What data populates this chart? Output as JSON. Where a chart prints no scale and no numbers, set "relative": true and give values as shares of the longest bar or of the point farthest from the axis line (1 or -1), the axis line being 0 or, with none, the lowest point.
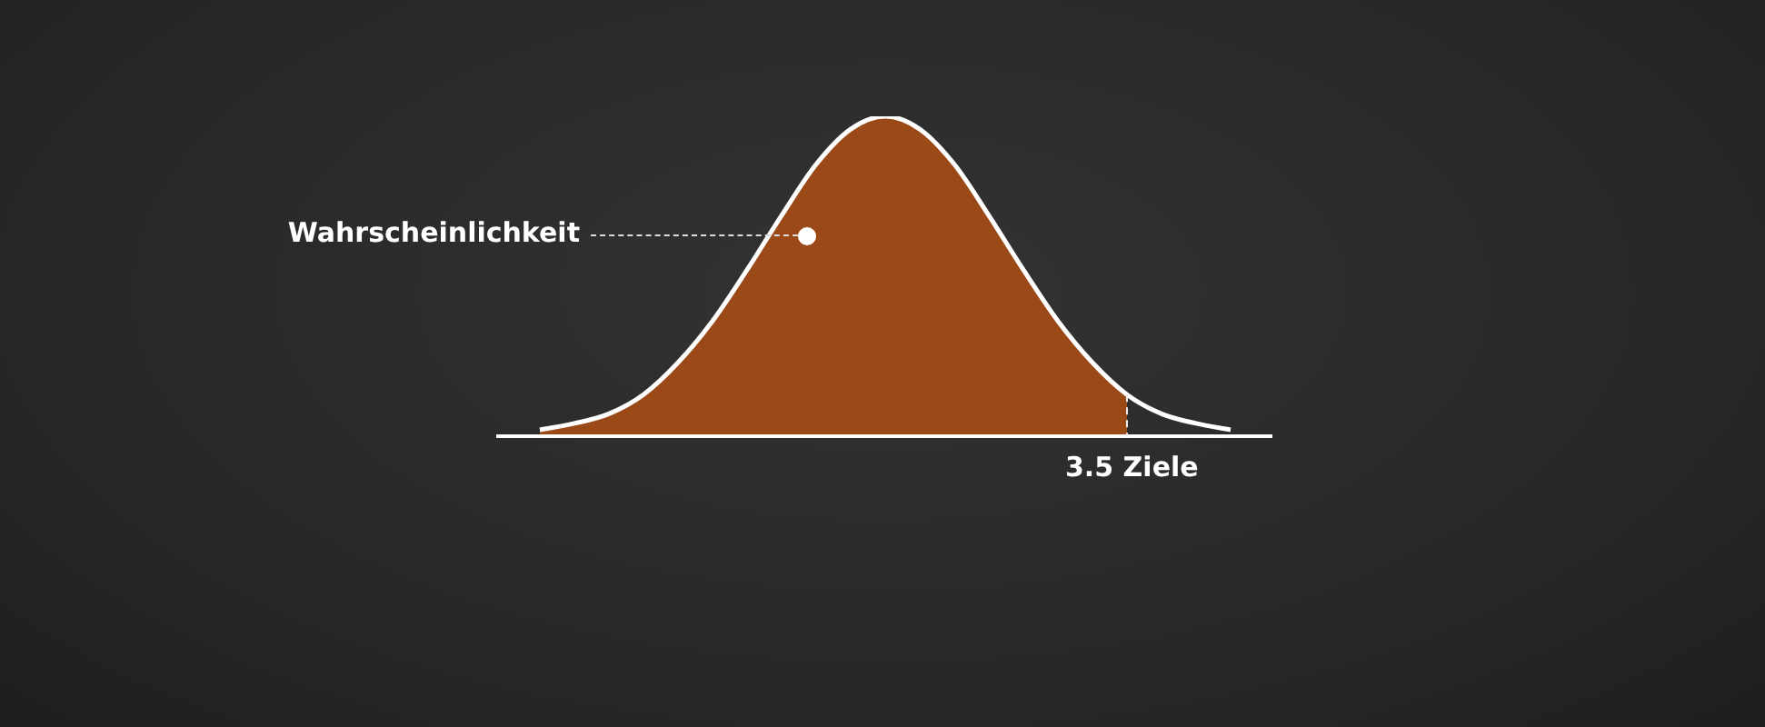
{
  "chart_data": {
    "type": "area",
    "relative": true,
    "categories": [
      null,
      null,
      null,
      null,
      null,
      null,
      null,
      null,
      null,
      null,
      null,
      null,
      null,
      null,
      null,
      null,
      null,
      null,
      null,
      null,
      null
    ],
    "series": [
      {
        "color": "#9b4a17",
        "values": [
          0.02,
          0.04,
          0.07,
          0.13,
          0.23,
          0.36,
          0.52,
          0.69,
          0.85,
          0.96,
          1,
          0.96,
          0.85,
          0.69,
          0.52,
          0.36,
          0.23,
          0.13,
          null,
          null,
          null
        ]
      },
      {
        "type": "line",
        "color": "#ffffff",
        "values": [
          0.02,
          0.04,
          0.07,
          0.13,
          0.23,
          0.36,
          0.52,
          0.69,
          0.85,
          0.96,
          1,
          0.96,
          0.85,
          0.69,
          0.52,
          0.36,
          0.23,
          0.13,
          0.07,
          0.04,
          0.02
        ]
      }
    ],
    "annotations": [
      "Wahrscheinlichkeit",
      "3.5 Ziele"
    ],
    "legend": false,
    "marker": "none",
    "line_style": "solid"
  }
}
